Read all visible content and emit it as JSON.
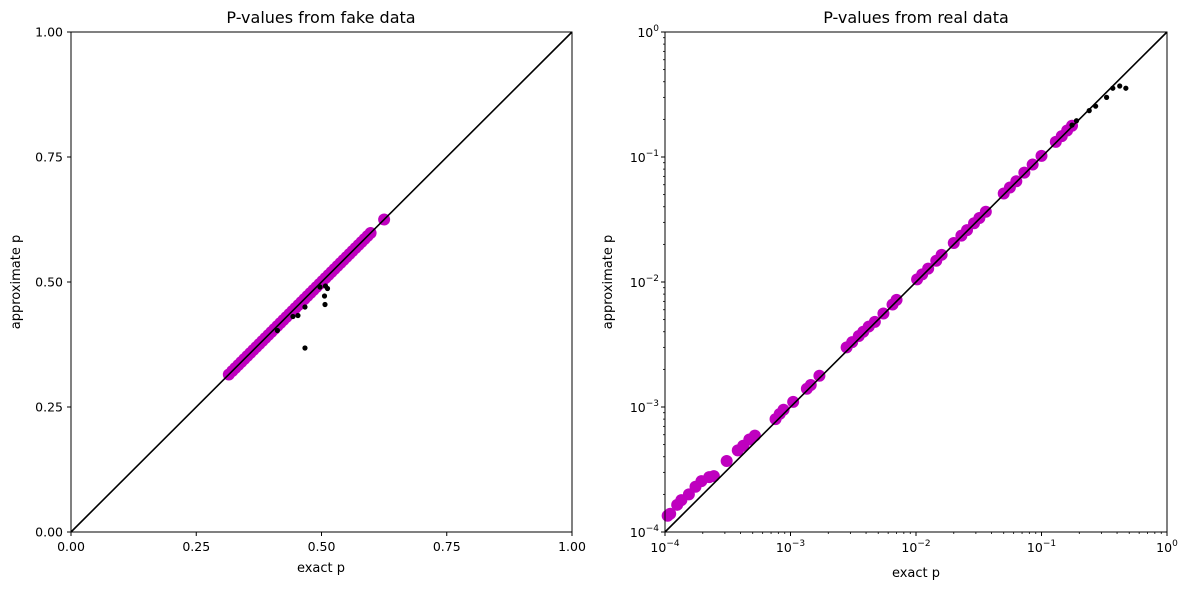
{
  "chart_data": [
    {
      "type": "scatter",
      "title": "P-values from fake data",
      "xlabel": "exact p",
      "ylabel": "approximate p",
      "xscale": "linear",
      "yscale": "linear",
      "xlim": [
        0,
        1
      ],
      "ylim": [
        0,
        1
      ],
      "xticks": [
        "0.00",
        "0.25",
        "0.50",
        "0.75",
        "1.00"
      ],
      "yticks": [
        "0.00",
        "0.25",
        "0.50",
        "0.75",
        "1.00"
      ],
      "xtick_values": [
        0,
        0.25,
        0.5,
        0.75,
        1.0
      ],
      "ytick_values": [
        0,
        0.25,
        0.5,
        0.75,
        1.0
      ],
      "reference_line": "y = x",
      "colors": {
        "large_points": "#bf00bf",
        "small_points": "#000000",
        "line": "#000000"
      },
      "series": [
        {
          "marker": "large",
          "x": [
            0.315,
            0.322,
            0.328,
            0.334,
            0.34,
            0.346,
            0.352,
            0.358,
            0.364,
            0.37,
            0.376,
            0.382,
            0.388,
            0.394,
            0.4,
            0.406,
            0.412,
            0.418,
            0.424,
            0.43,
            0.436,
            0.442,
            0.448,
            0.454,
            0.46,
            0.466,
            0.472,
            0.478,
            0.484,
            0.49,
            0.496,
            0.502,
            0.508,
            0.514,
            0.52,
            0.526,
            0.532,
            0.538,
            0.544,
            0.55,
            0.556,
            0.562,
            0.568,
            0.574,
            0.58,
            0.586,
            0.592,
            0.598,
            0.625
          ],
          "y": [
            0.315,
            0.322,
            0.328,
            0.334,
            0.34,
            0.346,
            0.352,
            0.358,
            0.364,
            0.37,
            0.376,
            0.382,
            0.388,
            0.394,
            0.4,
            0.406,
            0.412,
            0.418,
            0.424,
            0.43,
            0.436,
            0.442,
            0.448,
            0.454,
            0.46,
            0.466,
            0.472,
            0.478,
            0.484,
            0.49,
            0.496,
            0.502,
            0.508,
            0.514,
            0.52,
            0.526,
            0.532,
            0.538,
            0.544,
            0.55,
            0.556,
            0.562,
            0.568,
            0.574,
            0.58,
            0.586,
            0.592,
            0.598,
            0.625
          ]
        },
        {
          "marker": "small",
          "x": [
            0.412,
            0.443,
            0.453,
            0.467,
            0.467,
            0.497,
            0.506,
            0.507,
            0.508,
            0.512
          ],
          "y": [
            0.403,
            0.431,
            0.433,
            0.45,
            0.368,
            0.49,
            0.472,
            0.455,
            0.492,
            0.487
          ]
        }
      ]
    },
    {
      "type": "scatter",
      "title": "P-values from real data",
      "xlabel": "exact p",
      "ylabel": "approximate p",
      "xscale": "log",
      "yscale": "log",
      "xlim": [
        0.0001,
        1
      ],
      "ylim": [
        0.0001,
        1
      ],
      "xtick_labels": [
        {
          "base": "10",
          "exp": "−4"
        },
        {
          "base": "10",
          "exp": "−3"
        },
        {
          "base": "10",
          "exp": "−2"
        },
        {
          "base": "10",
          "exp": "−1"
        },
        {
          "base": "10",
          "exp": "0"
        }
      ],
      "ytick_labels": [
        {
          "base": "10",
          "exp": "−4"
        },
        {
          "base": "10",
          "exp": "−3"
        },
        {
          "base": "10",
          "exp": "−2"
        },
        {
          "base": "10",
          "exp": "−1"
        },
        {
          "base": "10",
          "exp": "0"
        }
      ],
      "tick_exponents": [
        -4,
        -3,
        -2,
        -1,
        0
      ],
      "reference_line": "y = x",
      "colors": {
        "large_points": "#bf00bf",
        "small_points": "#000000",
        "line": "#000000"
      },
      "series": [
        {
          "marker": "large",
          "x": [
            0.000105,
            0.00011,
            0.000125,
            0.000135,
            0.000155,
            0.000175,
            0.000195,
            0.000225,
            0.000245,
            0.00031,
            0.00038,
            0.00042,
            0.00047,
            0.00052,
            0.00076,
            0.00082,
            0.00088,
            0.00105,
            0.00135,
            0.00145,
            0.0017,
            0.0028,
            0.0031,
            0.0035,
            0.0038,
            0.0042,
            0.0047,
            0.0055,
            0.0065,
            0.007,
            0.0102,
            0.0112,
            0.0125,
            0.0145,
            0.016,
            0.02,
            0.023,
            0.0255,
            0.029,
            0.032,
            0.036,
            0.05,
            0.056,
            0.063,
            0.073,
            0.085,
            0.1,
            0.13,
            0.145,
            0.16,
            0.175
          ],
          "y": [
            0.000135,
            0.00014,
            0.000165,
            0.00018,
            0.0002,
            0.00023,
            0.000255,
            0.000275,
            0.00028,
            0.00037,
            0.00045,
            0.00049,
            0.00055,
            0.00059,
            0.0008,
            0.00088,
            0.00095,
            0.0011,
            0.0014,
            0.0015,
            0.00178,
            0.003,
            0.0033,
            0.0037,
            0.004,
            0.0044,
            0.0048,
            0.0056,
            0.0066,
            0.0072,
            0.0105,
            0.0115,
            0.0128,
            0.0148,
            0.0165,
            0.0205,
            0.0235,
            0.026,
            0.0295,
            0.0325,
            0.0365,
            0.051,
            0.057,
            0.064,
            0.075,
            0.087,
            0.102,
            0.132,
            0.147,
            0.163,
            0.178
          ]
        },
        {
          "marker": "small",
          "x": [
            0.175,
            0.19,
            0.24,
            0.27,
            0.33,
            0.37,
            0.42,
            0.47
          ],
          "y": [
            0.18,
            0.195,
            0.235,
            0.255,
            0.3,
            0.355,
            0.37,
            0.355
          ]
        }
      ]
    }
  ]
}
